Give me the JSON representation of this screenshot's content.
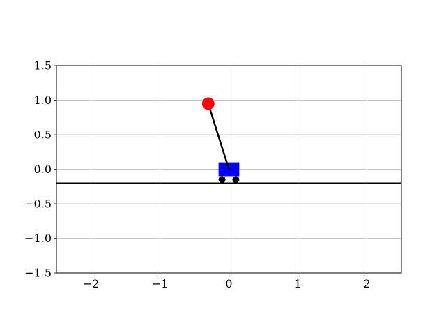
{
  "chart_data": {
    "type": "scatter",
    "title": "",
    "xlabel": "",
    "ylabel": "",
    "xlim": [
      -2.5,
      2.5
    ],
    "ylim": [
      -1.5,
      1.5
    ],
    "grid": true,
    "x_ticks": [
      -2,
      -1,
      0,
      1,
      2
    ],
    "y_ticks": [
      -1.5,
      -1.0,
      -0.5,
      0.0,
      0.5,
      1.0,
      1.5
    ],
    "x_tick_labels": [
      "−2",
      "−1",
      "0",
      "1",
      "2"
    ],
    "y_tick_labels": [
      "−1.5",
      "−1.0",
      "−0.5",
      "0.0",
      "0.5",
      "1.0",
      "1.5"
    ],
    "ground": {
      "y": -0.2,
      "color": "#000000"
    },
    "cart": {
      "x": 0.0,
      "y": 0.0,
      "width": 0.3,
      "height": 0.2,
      "color": "#0000ff"
    },
    "wheels": [
      {
        "x": -0.1,
        "y": -0.15,
        "radius": 0.05,
        "color": "#000000"
      },
      {
        "x": 0.1,
        "y": -0.15,
        "radius": 0.05,
        "color": "#000000"
      }
    ],
    "pole": {
      "x0": 0.0,
      "y0": 0.0,
      "x1": -0.3,
      "y1": 0.95,
      "color": "#000000"
    },
    "bob": {
      "x": -0.3,
      "y": 0.95,
      "radius": 0.09,
      "color": "#ff0000"
    }
  }
}
